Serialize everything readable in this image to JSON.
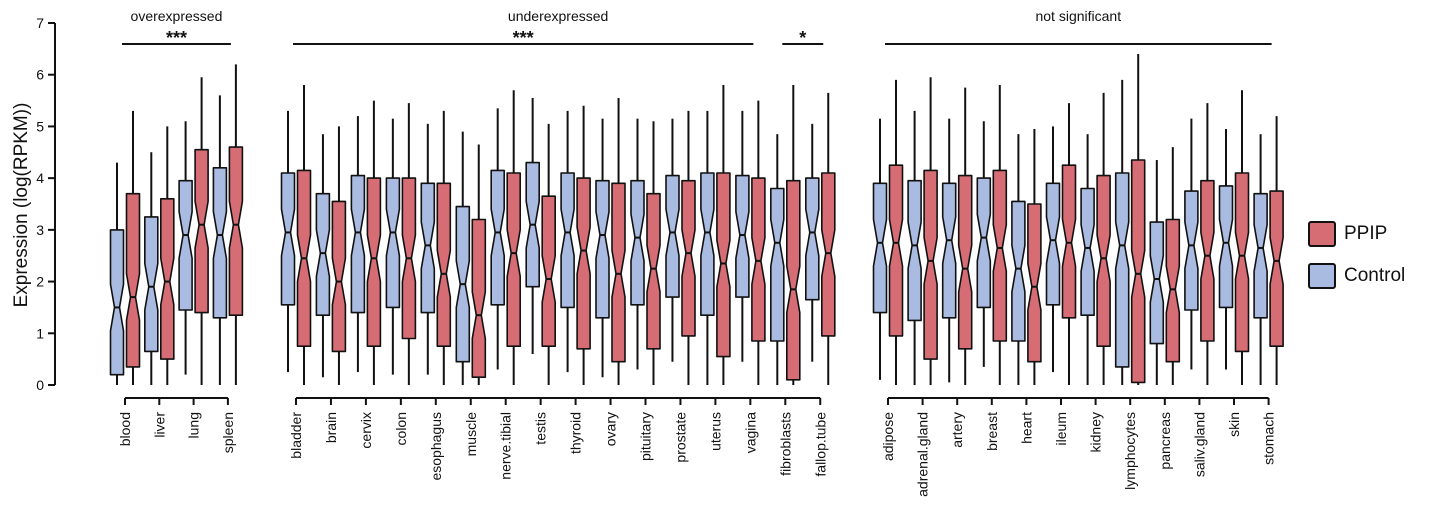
{
  "chart_data": {
    "type": "box",
    "ylabel": "Expression (log(RPKM))",
    "ylim": [
      0,
      7
    ],
    "yticks": [
      0,
      1,
      2,
      3,
      4,
      5,
      6,
      7
    ],
    "legend_position": "right",
    "series": [
      {
        "name": "PPIP",
        "color": "#d66d75"
      },
      {
        "name": "Control",
        "color": "#a9bbe0"
      }
    ],
    "groups": [
      {
        "label": "overexpressed",
        "significance": [
          {
            "text": "***",
            "from": "blood",
            "to": "spleen"
          }
        ]
      },
      {
        "label": "underexpressed",
        "significance": [
          {
            "text": "***",
            "from": "bladder",
            "to": "vagina"
          },
          {
            "text": "*",
            "from": "fibroblasts",
            "to": "fallop.tube"
          }
        ]
      },
      {
        "label": "not significant",
        "significance": [
          {
            "text": "",
            "from": "adipose",
            "to": "stomach"
          }
        ]
      }
    ],
    "tissues": [
      {
        "name": "blood",
        "group": 0,
        "control": {
          "whislo": 0,
          "q1": 0.2,
          "med": 1.5,
          "q3": 3.0,
          "whishi": 4.3
        },
        "ppip": {
          "whislo": 0,
          "q1": 0.35,
          "med": 1.7,
          "q3": 3.7,
          "whishi": 5.3
        }
      },
      {
        "name": "liver",
        "group": 0,
        "control": {
          "whislo": 0,
          "q1": 0.65,
          "med": 1.9,
          "q3": 3.25,
          "whishi": 4.5
        },
        "ppip": {
          "whislo": 0,
          "q1": 0.5,
          "med": 2.0,
          "q3": 3.6,
          "whishi": 5.0
        }
      },
      {
        "name": "lung",
        "group": 0,
        "control": {
          "whislo": 0.2,
          "q1": 1.45,
          "med": 2.9,
          "q3": 3.95,
          "whishi": 5.1
        },
        "ppip": {
          "whislo": 0,
          "q1": 1.4,
          "med": 3.1,
          "q3": 4.55,
          "whishi": 5.95
        }
      },
      {
        "name": "spleen",
        "group": 0,
        "control": {
          "whislo": 0,
          "q1": 1.3,
          "med": 2.9,
          "q3": 4.2,
          "whishi": 5.6
        },
        "ppip": {
          "whislo": 0,
          "q1": 1.35,
          "med": 3.1,
          "q3": 4.6,
          "whishi": 6.2
        }
      },
      {
        "name": "bladder",
        "group": 1,
        "control": {
          "whislo": 0.25,
          "q1": 1.55,
          "med": 2.95,
          "q3": 4.1,
          "whishi": 5.3
        },
        "ppip": {
          "whislo": 0,
          "q1": 0.75,
          "med": 2.45,
          "q3": 4.15,
          "whishi": 5.8
        }
      },
      {
        "name": "brain",
        "group": 1,
        "control": {
          "whislo": 0.15,
          "q1": 1.35,
          "med": 2.55,
          "q3": 3.7,
          "whishi": 4.85
        },
        "ppip": {
          "whislo": 0,
          "q1": 0.65,
          "med": 2.0,
          "q3": 3.55,
          "whishi": 5.0
        }
      },
      {
        "name": "cervix",
        "group": 1,
        "control": {
          "whislo": 0.25,
          "q1": 1.4,
          "med": 2.95,
          "q3": 4.05,
          "whishi": 5.2
        },
        "ppip": {
          "whislo": 0,
          "q1": 0.75,
          "med": 2.45,
          "q3": 4.0,
          "whishi": 5.5
        }
      },
      {
        "name": "colon",
        "group": 1,
        "control": {
          "whislo": 0.2,
          "q1": 1.5,
          "med": 2.95,
          "q3": 4.0,
          "whishi": 5.15
        },
        "ppip": {
          "whislo": 0,
          "q1": 0.9,
          "med": 2.45,
          "q3": 4.0,
          "whishi": 5.45
        }
      },
      {
        "name": "esophagus",
        "group": 1,
        "control": {
          "whislo": 0.2,
          "q1": 1.4,
          "med": 2.7,
          "q3": 3.9,
          "whishi": 5.05
        },
        "ppip": {
          "whislo": 0,
          "q1": 0.75,
          "med": 2.15,
          "q3": 3.9,
          "whishi": 5.3
        }
      },
      {
        "name": "muscle",
        "group": 1,
        "control": {
          "whislo": 0,
          "q1": 0.45,
          "med": 1.95,
          "q3": 3.45,
          "whishi": 4.9
        },
        "ppip": {
          "whislo": 0,
          "q1": 0.15,
          "med": 1.35,
          "q3": 3.2,
          "whishi": 4.65
        }
      },
      {
        "name": "nerve.tibial",
        "group": 1,
        "control": {
          "whislo": 0.3,
          "q1": 1.55,
          "med": 2.95,
          "q3": 4.15,
          "whishi": 5.35
        },
        "ppip": {
          "whislo": 0,
          "q1": 0.75,
          "med": 2.55,
          "q3": 4.1,
          "whishi": 5.7
        }
      },
      {
        "name": "testis",
        "group": 1,
        "control": {
          "whislo": 0.6,
          "q1": 1.9,
          "med": 3.1,
          "q3": 4.3,
          "whishi": 5.55
        },
        "ppip": {
          "whislo": 0,
          "q1": 0.75,
          "med": 2.05,
          "q3": 3.65,
          "whishi": 5.05
        }
      },
      {
        "name": "thyroid",
        "group": 1,
        "control": {
          "whislo": 0.25,
          "q1": 1.5,
          "med": 2.95,
          "q3": 4.1,
          "whishi": 5.3
        },
        "ppip": {
          "whislo": 0,
          "q1": 0.7,
          "med": 2.6,
          "q3": 4.0,
          "whishi": 5.4
        }
      },
      {
        "name": "ovary",
        "group": 1,
        "control": {
          "whislo": 0.15,
          "q1": 1.3,
          "med": 2.9,
          "q3": 3.95,
          "whishi": 5.15
        },
        "ppip": {
          "whislo": 0,
          "q1": 0.45,
          "med": 2.15,
          "q3": 3.9,
          "whishi": 5.55
        }
      },
      {
        "name": "pituitary",
        "group": 1,
        "control": {
          "whislo": 0.3,
          "q1": 1.55,
          "med": 2.85,
          "q3": 3.95,
          "whishi": 5.15
        },
        "ppip": {
          "whislo": 0,
          "q1": 0.7,
          "med": 2.25,
          "q3": 3.7,
          "whishi": 5.1
        }
      },
      {
        "name": "prostate",
        "group": 1,
        "control": {
          "whislo": 0.45,
          "q1": 1.7,
          "med": 2.95,
          "q3": 4.05,
          "whishi": 5.15
        },
        "ppip": {
          "whislo": 0,
          "q1": 0.95,
          "med": 2.55,
          "q3": 3.95,
          "whishi": 5.3
        }
      },
      {
        "name": "uterus",
        "group": 1,
        "control": {
          "whislo": 0,
          "q1": 1.35,
          "med": 2.95,
          "q3": 4.1,
          "whishi": 5.3
        },
        "ppip": {
          "whislo": 0,
          "q1": 0.55,
          "med": 2.35,
          "q3": 4.1,
          "whishi": 5.8
        }
      },
      {
        "name": "vagina",
        "group": 1,
        "control": {
          "whislo": 0.45,
          "q1": 1.7,
          "med": 2.9,
          "q3": 4.05,
          "whishi": 5.3
        },
        "ppip": {
          "whislo": 0,
          "q1": 0.85,
          "med": 2.4,
          "q3": 4.0,
          "whishi": 5.5
        }
      },
      {
        "name": "fibroblasts",
        "group": 1,
        "control": {
          "whislo": 0,
          "q1": 0.85,
          "med": 2.75,
          "q3": 3.8,
          "whishi": 4.85
        },
        "ppip": {
          "whislo": 0,
          "q1": 0.1,
          "med": 1.85,
          "q3": 3.95,
          "whishi": 5.8
        }
      },
      {
        "name": "fallop.tube",
        "group": 1,
        "control": {
          "whislo": 0.45,
          "q1": 1.65,
          "med": 2.95,
          "q3": 4.0,
          "whishi": 5.05
        },
        "ppip": {
          "whislo": 0,
          "q1": 0.95,
          "med": 2.55,
          "q3": 4.1,
          "whishi": 5.65
        }
      },
      {
        "name": "adipose",
        "group": 2,
        "control": {
          "whislo": 0.1,
          "q1": 1.4,
          "med": 2.75,
          "q3": 3.9,
          "whishi": 5.15
        },
        "ppip": {
          "whislo": 0,
          "q1": 0.95,
          "med": 2.75,
          "q3": 4.25,
          "whishi": 5.9
        }
      },
      {
        "name": "adrenal.gland",
        "group": 2,
        "control": {
          "whislo": 0,
          "q1": 1.25,
          "med": 2.7,
          "q3": 3.95,
          "whishi": 5.3
        },
        "ppip": {
          "whislo": 0,
          "q1": 0.5,
          "med": 2.4,
          "q3": 4.15,
          "whishi": 5.95
        }
      },
      {
        "name": "artery",
        "group": 2,
        "control": {
          "whislo": 0.05,
          "q1": 1.3,
          "med": 2.8,
          "q3": 3.9,
          "whishi": 5.15
        },
        "ppip": {
          "whislo": 0,
          "q1": 0.7,
          "med": 2.25,
          "q3": 4.05,
          "whishi": 5.75
        }
      },
      {
        "name": "breast",
        "group": 2,
        "control": {
          "whislo": 0.35,
          "q1": 1.5,
          "med": 2.85,
          "q3": 4.0,
          "whishi": 5.1
        },
        "ppip": {
          "whislo": 0,
          "q1": 0.85,
          "med": 2.65,
          "q3": 4.15,
          "whishi": 5.8
        }
      },
      {
        "name": "heart",
        "group": 2,
        "control": {
          "whislo": 0,
          "q1": 0.85,
          "med": 2.25,
          "q3": 3.55,
          "whishi": 4.85
        },
        "ppip": {
          "whislo": 0,
          "q1": 0.45,
          "med": 1.9,
          "q3": 3.5,
          "whishi": 4.95
        }
      },
      {
        "name": "ileum",
        "group": 2,
        "control": {
          "whislo": 0.25,
          "q1": 1.55,
          "med": 2.8,
          "q3": 3.9,
          "whishi": 5.0
        },
        "ppip": {
          "whislo": 0,
          "q1": 1.3,
          "med": 2.75,
          "q3": 4.25,
          "whishi": 5.45
        }
      },
      {
        "name": "kidney",
        "group": 2,
        "control": {
          "whislo": 0,
          "q1": 1.35,
          "med": 2.65,
          "q3": 3.8,
          "whishi": 4.85
        },
        "ppip": {
          "whislo": 0,
          "q1": 0.75,
          "med": 2.45,
          "q3": 4.05,
          "whishi": 5.65
        }
      },
      {
        "name": "lymphocytes",
        "group": 2,
        "control": {
          "whislo": 0,
          "q1": 0.35,
          "med": 2.7,
          "q3": 4.1,
          "whishi": 5.9
        },
        "ppip": {
          "whislo": 0,
          "q1": 0.05,
          "med": 2.15,
          "q3": 4.35,
          "whishi": 6.4
        }
      },
      {
        "name": "pancreas",
        "group": 2,
        "control": {
          "whislo": 0,
          "q1": 0.8,
          "med": 2.05,
          "q3": 3.15,
          "whishi": 4.35
        },
        "ppip": {
          "whislo": 0,
          "q1": 0.45,
          "med": 1.85,
          "q3": 3.2,
          "whishi": 4.6
        }
      },
      {
        "name": "saliv.gland",
        "group": 2,
        "control": {
          "whislo": 0.3,
          "q1": 1.45,
          "med": 2.7,
          "q3": 3.75,
          "whishi": 5.15
        },
        "ppip": {
          "whislo": 0,
          "q1": 0.85,
          "med": 2.5,
          "q3": 3.95,
          "whishi": 5.45
        }
      },
      {
        "name": "skin",
        "group": 2,
        "control": {
          "whislo": 0.3,
          "q1": 1.5,
          "med": 2.75,
          "q3": 3.85,
          "whishi": 4.95
        },
        "ppip": {
          "whislo": 0,
          "q1": 0.65,
          "med": 2.5,
          "q3": 4.1,
          "whishi": 5.7
        }
      },
      {
        "name": "stomach",
        "group": 2,
        "control": {
          "whislo": 0,
          "q1": 1.3,
          "med": 2.65,
          "q3": 3.7,
          "whishi": 4.85
        },
        "ppip": {
          "whislo": 0,
          "q1": 0.75,
          "med": 2.4,
          "q3": 3.75,
          "whishi": 5.2
        }
      }
    ]
  }
}
